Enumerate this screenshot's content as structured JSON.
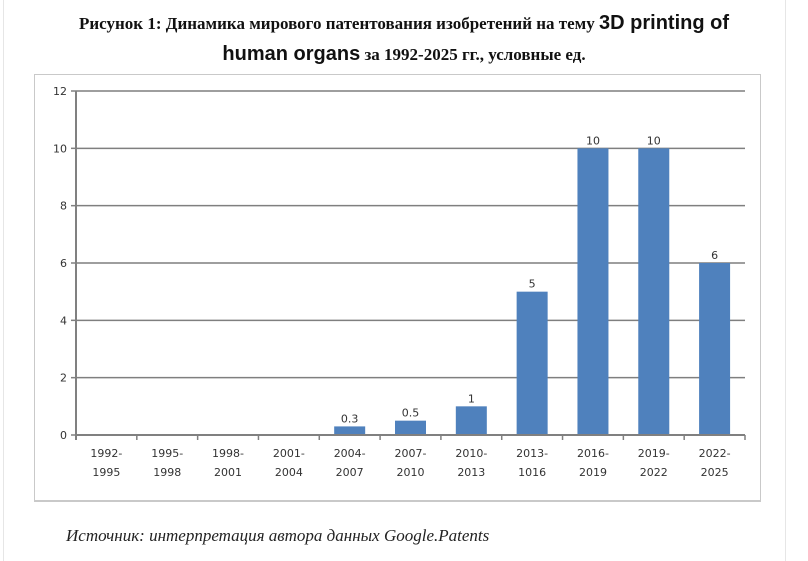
{
  "figure": {
    "title_part1": "Рисунок 1: Динамика мирового патентования изобретений на тему ",
    "title_en_part1": "3D printing of",
    "title_en_part2": "human organs",
    "title_part2": " за 1992-2025 гг., условные ед.",
    "source": "Источник: интерпретация автора данных Google.Patents"
  },
  "colors": {
    "bar": "#4f81bd",
    "grid": "#7f7f7f",
    "axis": "#808080",
    "frame": "#c9c9c9"
  },
  "chart_data": {
    "type": "bar",
    "title": "Динамика мирового патентования изобретений на тему 3D printing of human organs за 1992-2025 гг., условные ед.",
    "xlabel": "",
    "ylabel": "",
    "ylim": [
      0,
      12
    ],
    "yticks": [
      0,
      2,
      4,
      6,
      8,
      10,
      12
    ],
    "grid": true,
    "legend": "none",
    "categories": [
      "1992-1995",
      "1995-1998",
      "1998-2001",
      "2001-2004",
      "2004-2007",
      "2007-2010",
      "2010-2013",
      "2013-1016",
      "2016-2019",
      "2019-2022",
      "2022-2025"
    ],
    "category_lines": [
      [
        "1992-",
        "1995"
      ],
      [
        "1995-",
        "1998"
      ],
      [
        "1998-",
        "2001"
      ],
      [
        "2001-",
        "2004"
      ],
      [
        "2004-",
        "2007"
      ],
      [
        "2007-",
        "2010"
      ],
      [
        "2010-",
        "2013"
      ],
      [
        "2013-",
        "1016"
      ],
      [
        "2016-",
        "2019"
      ],
      [
        "2019-",
        "2022"
      ],
      [
        "2022-",
        "2025"
      ]
    ],
    "values": [
      0,
      0,
      0,
      0,
      0.3,
      0.5,
      1,
      5,
      10,
      10,
      6
    ],
    "data_labels": [
      "",
      "",
      "",
      "",
      "0.3",
      "0.5",
      "1",
      "5",
      "10",
      "10",
      "6"
    ]
  }
}
